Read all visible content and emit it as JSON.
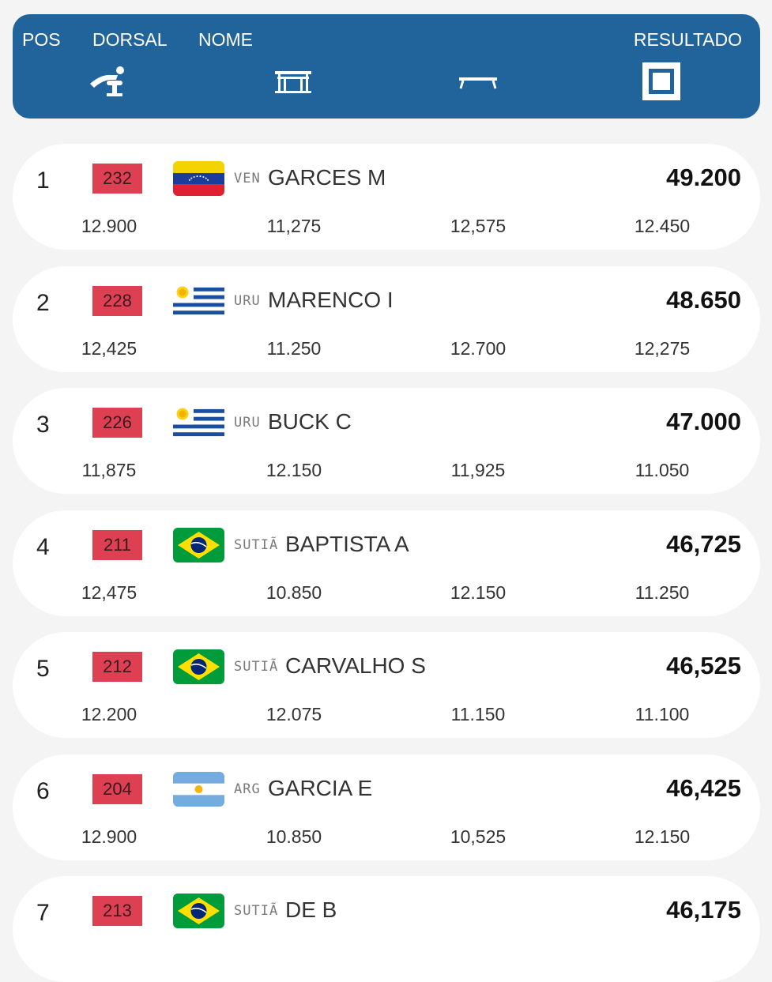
{
  "header": {
    "pos_label": "POS",
    "bib_label": "DORSAL",
    "name_label": "NOME",
    "result_label": "RESULTADO",
    "apparatus_icons": [
      "vault-icon",
      "uneven-bars-icon",
      "balance-beam-icon",
      "floor-exercise-icon"
    ]
  },
  "rows": [
    {
      "pos": "1",
      "bib": "232",
      "flag": "venezuela-flag",
      "country": "VEN",
      "name": "GARCES M",
      "total": "49.200",
      "scores": [
        "12.900",
        "11,275",
        "12,575",
        "12.450"
      ]
    },
    {
      "pos": "2",
      "bib": "228",
      "flag": "uruguay-flag",
      "country": "URU",
      "name": "MARENCO I",
      "total": "48.650",
      "scores": [
        "12,425",
        "11.250",
        "12.700",
        "12,275"
      ]
    },
    {
      "pos": "3",
      "bib": "226",
      "flag": "uruguay-flag",
      "country": "URU",
      "name": "BUCK C",
      "total": "47.000",
      "scores": [
        "11,875",
        "12.150",
        "11,925",
        "11.050"
      ]
    },
    {
      "pos": "4",
      "bib": "211",
      "flag": "brazil-flag",
      "country": "SUTIÃ",
      "name": "BAPTISTA A",
      "total": "46,725",
      "scores": [
        "12,475",
        "10.850",
        "12.150",
        "11.250"
      ]
    },
    {
      "pos": "5",
      "bib": "212",
      "flag": "brazil-flag",
      "country": "SUTIÃ",
      "name": "CARVALHO S",
      "total": "46,525",
      "scores": [
        "12.200",
        "12.075",
        "11.150",
        "11.100"
      ]
    },
    {
      "pos": "6",
      "bib": "204",
      "flag": "argentina-flag",
      "country": "ARG",
      "name": "GARCIA E",
      "total": "46,425",
      "scores": [
        "12.900",
        "10.850",
        "10,525",
        "12.150"
      ]
    },
    {
      "pos": "7",
      "bib": "213",
      "flag": "brazil-flag",
      "country": "SUTIÃ",
      "name": "DE B",
      "total": "46,175",
      "scores": []
    }
  ]
}
